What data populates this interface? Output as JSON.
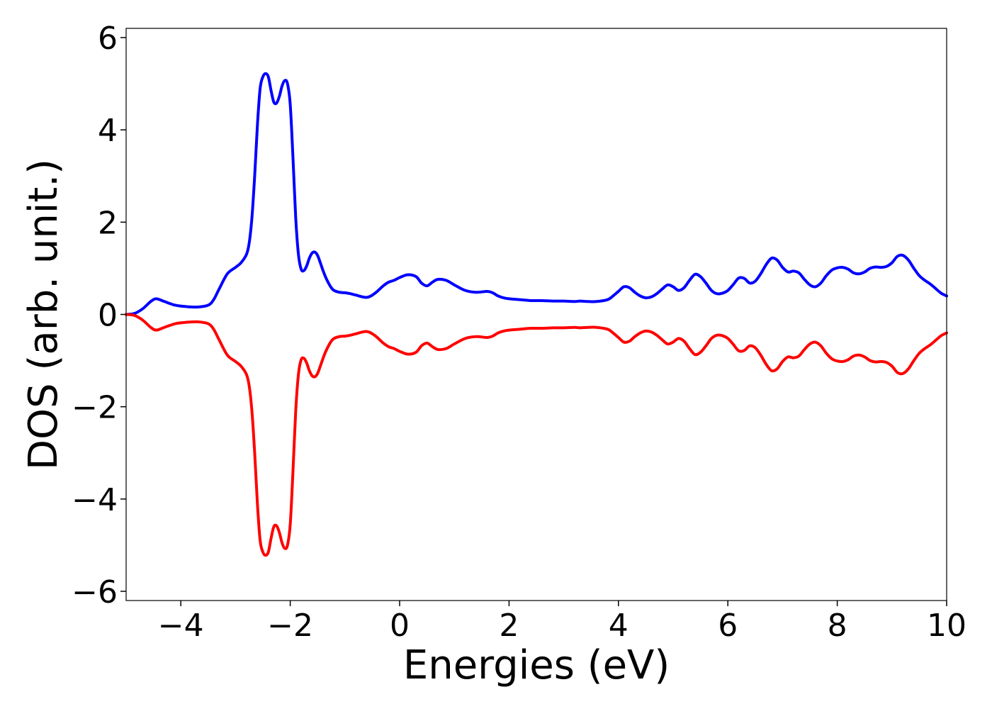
{
  "chart_data": {
    "type": "line",
    "title": "",
    "xlabel": "Energies (eV)",
    "ylabel": "DOS (arb. unit.)",
    "xlim": [
      -5,
      10
    ],
    "ylim": [
      -6.2,
      6.2
    ],
    "xticks": [
      -4,
      -2,
      0,
      2,
      4,
      6,
      8,
      10
    ],
    "yticks": [
      -6,
      -4,
      -2,
      0,
      2,
      4,
      6
    ],
    "xtick_labels": [
      "−4",
      "−2",
      "0",
      "2",
      "4",
      "6",
      "8",
      "10"
    ],
    "ytick_labels": [
      "−6",
      "−4",
      "−2",
      "0",
      "2",
      "4",
      "6"
    ],
    "grid": false,
    "legend": "none",
    "series": [
      {
        "color": "#0000ff",
        "x": [
          -5,
          -4.85,
          -4.7,
          -4.55,
          -4.45,
          -4.3,
          -4.1,
          -3.9,
          -3.7,
          -3.5,
          -3.4,
          -3.3,
          -3.15,
          -3.0,
          -2.9,
          -2.8,
          -2.75,
          -2.7,
          -2.65,
          -2.6,
          -2.55,
          -2.5,
          -2.45,
          -2.4,
          -2.35,
          -2.3,
          -2.25,
          -2.2,
          -2.15,
          -2.1,
          -2.05,
          -2.0,
          -1.95,
          -1.9,
          -1.85,
          -1.8,
          -1.75,
          -1.7,
          -1.65,
          -1.6,
          -1.55,
          -1.5,
          -1.45,
          -1.4,
          -1.35,
          -1.3,
          -1.25,
          -1.2,
          -1.1,
          -1.0,
          -0.9,
          -0.8,
          -0.6,
          -0.45,
          -0.3,
          -0.2,
          -0.1,
          0,
          0.15,
          0.3,
          0.4,
          0.5,
          0.6,
          0.7,
          0.85,
          1.0,
          1.2,
          1.4,
          1.6,
          1.7,
          1.8,
          1.9,
          2.0,
          2.2,
          2.4,
          2.6,
          2.8,
          3.0,
          3.2,
          3.3,
          3.45,
          3.6,
          3.8,
          3.9,
          4.0,
          4.1,
          4.2,
          4.3,
          4.4,
          4.5,
          4.6,
          4.7,
          4.8,
          4.9,
          5.0,
          5.1,
          5.2,
          5.3,
          5.4,
          5.5,
          5.6,
          5.7,
          5.8,
          5.9,
          6.0,
          6.1,
          6.2,
          6.3,
          6.4,
          6.5,
          6.6,
          6.7,
          6.8,
          6.9,
          7.0,
          7.1,
          7.2,
          7.3,
          7.4,
          7.5,
          7.6,
          7.7,
          7.8,
          7.9,
          8.0,
          8.1,
          8.2,
          8.3,
          8.4,
          8.5,
          8.6,
          8.7,
          8.8,
          8.9,
          9.0,
          9.1,
          9.2,
          9.3,
          9.4,
          9.5,
          9.6,
          9.7,
          9.8,
          9.9,
          10.0
        ],
        "y": [
          0,
          0.02,
          0.12,
          0.28,
          0.34,
          0.28,
          0.2,
          0.17,
          0.16,
          0.2,
          0.32,
          0.55,
          0.88,
          1.02,
          1.12,
          1.3,
          1.55,
          2.1,
          3.0,
          4.1,
          4.9,
          5.15,
          5.22,
          5.15,
          4.85,
          4.6,
          4.58,
          4.72,
          4.95,
          5.07,
          5.0,
          4.55,
          3.4,
          2.1,
          1.3,
          0.98,
          0.95,
          1.05,
          1.22,
          1.33,
          1.35,
          1.28,
          1.12,
          0.95,
          0.8,
          0.68,
          0.58,
          0.52,
          0.48,
          0.47,
          0.45,
          0.42,
          0.37,
          0.46,
          0.62,
          0.7,
          0.74,
          0.8,
          0.86,
          0.82,
          0.68,
          0.62,
          0.7,
          0.76,
          0.74,
          0.64,
          0.52,
          0.48,
          0.5,
          0.47,
          0.4,
          0.36,
          0.34,
          0.32,
          0.3,
          0.3,
          0.29,
          0.29,
          0.28,
          0.29,
          0.28,
          0.28,
          0.32,
          0.4,
          0.5,
          0.6,
          0.58,
          0.48,
          0.4,
          0.36,
          0.38,
          0.45,
          0.55,
          0.64,
          0.6,
          0.52,
          0.58,
          0.74,
          0.87,
          0.82,
          0.68,
          0.52,
          0.45,
          0.46,
          0.52,
          0.65,
          0.79,
          0.78,
          0.68,
          0.72,
          0.88,
          1.08,
          1.22,
          1.18,
          1.02,
          0.92,
          0.94,
          0.9,
          0.76,
          0.64,
          0.6,
          0.68,
          0.84,
          0.96,
          1.01,
          1.02,
          0.98,
          0.9,
          0.88,
          0.92,
          1.0,
          1.03,
          1.02,
          1.04,
          1.12,
          1.26,
          1.28,
          1.18,
          1.0,
          0.84,
          0.74,
          0.66,
          0.56,
          0.46,
          0.4
        ]
      },
      {
        "color": "#ff0000",
        "x": [
          -5,
          -4.85,
          -4.7,
          -4.55,
          -4.45,
          -4.3,
          -4.1,
          -3.9,
          -3.7,
          -3.5,
          -3.4,
          -3.3,
          -3.15,
          -3.0,
          -2.9,
          -2.8,
          -2.75,
          -2.7,
          -2.65,
          -2.6,
          -2.55,
          -2.5,
          -2.45,
          -2.4,
          -2.35,
          -2.3,
          -2.25,
          -2.2,
          -2.15,
          -2.1,
          -2.05,
          -2.0,
          -1.95,
          -1.9,
          -1.85,
          -1.8,
          -1.75,
          -1.7,
          -1.65,
          -1.6,
          -1.55,
          -1.5,
          -1.45,
          -1.4,
          -1.35,
          -1.3,
          -1.25,
          -1.2,
          -1.1,
          -1.0,
          -0.9,
          -0.8,
          -0.6,
          -0.45,
          -0.3,
          -0.2,
          -0.1,
          0,
          0.15,
          0.3,
          0.4,
          0.5,
          0.6,
          0.7,
          0.85,
          1.0,
          1.2,
          1.4,
          1.6,
          1.7,
          1.8,
          1.9,
          2.0,
          2.2,
          2.4,
          2.6,
          2.8,
          3.0,
          3.2,
          3.3,
          3.45,
          3.6,
          3.8,
          3.9,
          4.0,
          4.1,
          4.2,
          4.3,
          4.4,
          4.5,
          4.6,
          4.7,
          4.8,
          4.9,
          5.0,
          5.1,
          5.2,
          5.3,
          5.4,
          5.5,
          5.6,
          5.7,
          5.8,
          5.9,
          6.0,
          6.1,
          6.2,
          6.3,
          6.4,
          6.5,
          6.6,
          6.7,
          6.8,
          6.9,
          7.0,
          7.1,
          7.2,
          7.3,
          7.4,
          7.5,
          7.6,
          7.7,
          7.8,
          7.9,
          8.0,
          8.1,
          8.2,
          8.3,
          8.4,
          8.5,
          8.6,
          8.7,
          8.8,
          8.9,
          9.0,
          9.1,
          9.2,
          9.3,
          9.4,
          9.5,
          9.6,
          9.7,
          9.8,
          9.9,
          10.0
        ],
        "y": [
          0,
          -0.02,
          -0.12,
          -0.28,
          -0.34,
          -0.28,
          -0.2,
          -0.17,
          -0.16,
          -0.2,
          -0.32,
          -0.55,
          -0.88,
          -1.02,
          -1.12,
          -1.3,
          -1.55,
          -2.1,
          -3.0,
          -4.1,
          -4.9,
          -5.15,
          -5.22,
          -5.15,
          -4.85,
          -4.6,
          -4.58,
          -4.72,
          -4.95,
          -5.07,
          -5.0,
          -4.55,
          -3.4,
          -2.1,
          -1.3,
          -0.98,
          -0.95,
          -1.05,
          -1.22,
          -1.33,
          -1.35,
          -1.28,
          -1.12,
          -0.95,
          -0.8,
          -0.68,
          -0.58,
          -0.52,
          -0.48,
          -0.47,
          -0.45,
          -0.42,
          -0.37,
          -0.46,
          -0.62,
          -0.7,
          -0.74,
          -0.8,
          -0.86,
          -0.82,
          -0.68,
          -0.62,
          -0.7,
          -0.76,
          -0.74,
          -0.64,
          -0.52,
          -0.48,
          -0.5,
          -0.47,
          -0.4,
          -0.36,
          -0.34,
          -0.32,
          -0.3,
          -0.3,
          -0.29,
          -0.29,
          -0.28,
          -0.29,
          -0.28,
          -0.28,
          -0.32,
          -0.4,
          -0.5,
          -0.6,
          -0.58,
          -0.48,
          -0.4,
          -0.36,
          -0.38,
          -0.45,
          -0.55,
          -0.64,
          -0.6,
          -0.52,
          -0.58,
          -0.74,
          -0.87,
          -0.82,
          -0.68,
          -0.52,
          -0.45,
          -0.46,
          -0.52,
          -0.65,
          -0.79,
          -0.78,
          -0.68,
          -0.72,
          -0.88,
          -1.08,
          -1.22,
          -1.18,
          -1.02,
          -0.92,
          -0.94,
          -0.9,
          -0.76,
          -0.64,
          -0.6,
          -0.68,
          -0.84,
          -0.96,
          -1.01,
          -1.02,
          -0.98,
          -0.9,
          -0.88,
          -0.92,
          -1.0,
          -1.03,
          -1.02,
          -1.04,
          -1.12,
          -1.26,
          -1.28,
          -1.18,
          -1.0,
          -0.84,
          -0.74,
          -0.66,
          -0.56,
          -0.46,
          -0.4
        ]
      }
    ]
  }
}
